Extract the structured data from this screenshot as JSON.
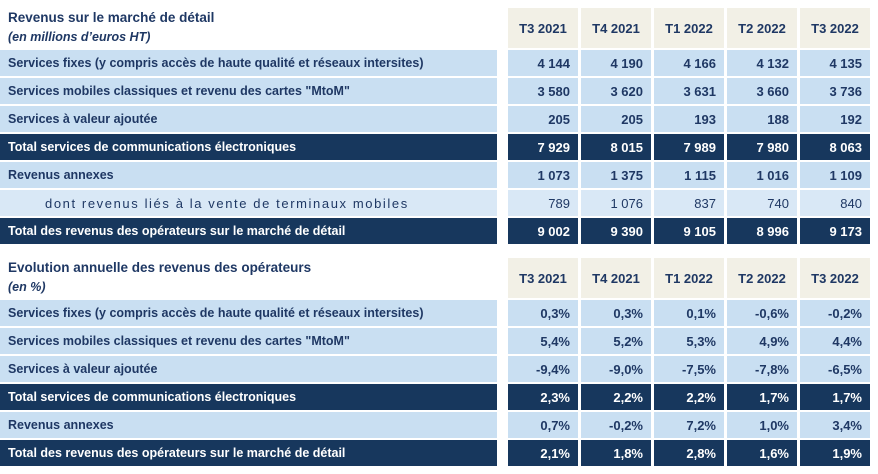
{
  "colors": {
    "total_row_bg": "#17375D",
    "data_row_bg": "#C9DFF2",
    "sub_row_bg": "#D9E8F6",
    "quarter_header_bg": "#F2F0E6",
    "text_navy": "#1F3864",
    "text_white": "#FFFFFF"
  },
  "chart_data": [
    {
      "type": "table",
      "title": "Revenus sur le marché de détail",
      "subtitle": "(en millions d’euros HT)",
      "columns": [
        "T3 2021",
        "T4 2021",
        "T1 2022",
        "T2 2022",
        "T3 2022"
      ],
      "rows": [
        {
          "label": "Services fixes (y compris accès de haute qualité et réseaux intersites)",
          "style": "light",
          "values": [
            "4 144",
            "4 190",
            "4 166",
            "4 132",
            "4 135"
          ]
        },
        {
          "label": "Services mobiles classiques et revenu des cartes \"MtoM\"",
          "style": "light",
          "values": [
            "3 580",
            "3 620",
            "3 631",
            "3 660",
            "3 736"
          ]
        },
        {
          "label": "Services à valeur ajoutée",
          "style": "light",
          "values": [
            "205",
            "205",
            "193",
            "188",
            "192"
          ]
        },
        {
          "label": "Total services de communications électroniques",
          "style": "dark",
          "values": [
            "7 929",
            "8 015",
            "7 989",
            "7 980",
            "8 063"
          ]
        },
        {
          "label": "Revenus annexes",
          "style": "light",
          "values": [
            "1 073",
            "1 375",
            "1 115",
            "1 016",
            "1 109"
          ]
        },
        {
          "label": "dont revenus liés à la vente de terminaux mobiles",
          "style": "sub",
          "values": [
            "789",
            "1 076",
            "837",
            "740",
            "840"
          ]
        },
        {
          "label": "Total des revenus des opérateurs sur le marché de détail",
          "style": "dark",
          "values": [
            "9 002",
            "9 390",
            "9 105",
            "8 996",
            "9 173"
          ]
        }
      ]
    },
    {
      "type": "table",
      "title": "Evolution annuelle des revenus des opérateurs",
      "subtitle": "(en %)",
      "columns": [
        "T3 2021",
        "T4 2021",
        "T1 2022",
        "T2 2022",
        "T3 2022"
      ],
      "rows": [
        {
          "label": "Services fixes (y compris accès de haute qualité et réseaux intersites)",
          "style": "light",
          "values": [
            "0,3%",
            "0,3%",
            "0,1%",
            "-0,6%",
            "-0,2%"
          ]
        },
        {
          "label": "Services mobiles classiques et revenu des cartes \"MtoM\"",
          "style": "light",
          "values": [
            "5,4%",
            "5,2%",
            "5,3%",
            "4,9%",
            "4,4%"
          ]
        },
        {
          "label": "Services à valeur ajoutée",
          "style": "light",
          "values": [
            "-9,4%",
            "-9,0%",
            "-7,5%",
            "-7,8%",
            "-6,5%"
          ]
        },
        {
          "label": "Total services de communications électroniques",
          "style": "dark",
          "values": [
            "2,3%",
            "2,2%",
            "2,2%",
            "1,7%",
            "1,7%"
          ]
        },
        {
          "label": "Revenus annexes",
          "style": "light",
          "values": [
            "0,7%",
            "-0,2%",
            "7,2%",
            "1,0%",
            "3,4%"
          ]
        },
        {
          "label": "Total des revenus des opérateurs sur le marché de détail",
          "style": "dark",
          "values": [
            "2,1%",
            "1,8%",
            "2,8%",
            "1,6%",
            "1,9%"
          ]
        }
      ]
    }
  ]
}
